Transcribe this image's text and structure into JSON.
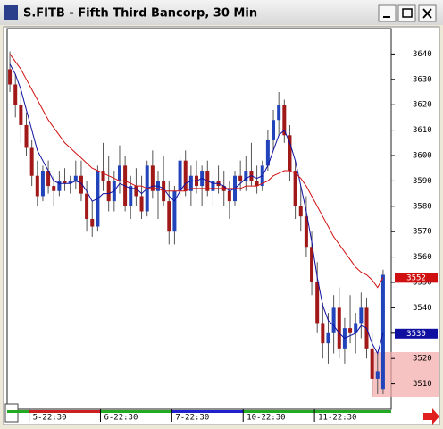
{
  "chart_data": {
    "type": "candlestick",
    "title": "S.FITB - Fifth Third Bancorp, 30 Min",
    "categories": [
      null,
      null,
      null,
      null,
      "5-22:30",
      null,
      null,
      null,
      null,
      null,
      null,
      null,
      null,
      null,
      null,
      null,
      null,
      "6-22:30",
      null,
      null,
      null,
      null,
      null,
      null,
      null,
      null,
      null,
      null,
      null,
      null,
      "7-22:30",
      null,
      null,
      null,
      null,
      null,
      null,
      null,
      null,
      null,
      null,
      null,
      null,
      "10-22:30",
      null,
      null,
      null,
      null,
      null,
      null,
      null,
      null,
      null,
      null,
      null,
      null,
      "11-22:30",
      null,
      null,
      null,
      null,
      null,
      null,
      null,
      null,
      null,
      null,
      null,
      null
    ],
    "open": [
      3634,
      3628,
      3620,
      3612,
      3603,
      3592,
      3584,
      3594,
      3588,
      3586,
      3590,
      3589,
      3590,
      3592,
      3585,
      3575,
      3572,
      3594,
      3590,
      3582,
      3590,
      3596,
      3580,
      3588,
      3584,
      3578,
      3596,
      3586,
      3590,
      3582,
      3570,
      3586,
      3598,
      3586,
      3592,
      3588,
      3594,
      3586,
      3590,
      3588,
      3586,
      3582,
      3592,
      3590,
      3594,
      3590,
      3588,
      3596,
      3606,
      3614,
      3620,
      3608,
      3594,
      3580,
      3576,
      3564,
      3550,
      3534,
      3526,
      3530,
      3540,
      3524,
      3532,
      3530,
      3534,
      3540,
      3524,
      3512,
      3508
    ],
    "high": [
      3641,
      3632,
      3626,
      3617,
      3606,
      3598,
      3596,
      3598,
      3592,
      3594,
      3595,
      3592,
      3598,
      3598,
      3590,
      3582,
      3596,
      3605,
      3600,
      3594,
      3604,
      3600,
      3592,
      3595,
      3592,
      3598,
      3602,
      3594,
      3600,
      3590,
      3588,
      3600,
      3602,
      3596,
      3598,
      3596,
      3598,
      3592,
      3596,
      3594,
      3590,
      3594,
      3598,
      3600,
      3605,
      3596,
      3598,
      3610,
      3618,
      3625,
      3622,
      3612,
      3598,
      3588,
      3584,
      3570,
      3558,
      3542,
      3538,
      3545,
      3548,
      3536,
      3545,
      3538,
      3546,
      3544,
      3530,
      3522,
      3555
    ],
    "low": [
      3625,
      3615,
      3605,
      3600,
      3588,
      3580,
      3582,
      3585,
      3580,
      3584,
      3586,
      3585,
      3587,
      3582,
      3570,
      3568,
      3570,
      3586,
      3578,
      3578,
      3585,
      3578,
      3575,
      3580,
      3575,
      3576,
      3583,
      3575,
      3580,
      3565,
      3565,
      3583,
      3584,
      3580,
      3585,
      3580,
      3584,
      3580,
      3585,
      3580,
      3575,
      3580,
      3586,
      3586,
      3588,
      3585,
      3586,
      3594,
      3602,
      3608,
      3605,
      3590,
      3575,
      3570,
      3560,
      3545,
      3530,
      3520,
      3518,
      3522,
      3520,
      3518,
      3526,
      3522,
      3528,
      3520,
      3505,
      3506,
      3506
    ],
    "close": [
      3628,
      3620,
      3612,
      3603,
      3592,
      3584,
      3594,
      3588,
      3586,
      3590,
      3589,
      3590,
      3592,
      3585,
      3575,
      3572,
      3594,
      3590,
      3582,
      3590,
      3596,
      3580,
      3588,
      3584,
      3578,
      3596,
      3586,
      3590,
      3582,
      3570,
      3586,
      3598,
      3586,
      3592,
      3588,
      3594,
      3586,
      3590,
      3588,
      3586,
      3582,
      3592,
      3590,
      3594,
      3590,
      3588,
      3596,
      3606,
      3614,
      3620,
      3608,
      3594,
      3580,
      3576,
      3564,
      3550,
      3534,
      3526,
      3530,
      3540,
      3524,
      3532,
      3530,
      3534,
      3540,
      3524,
      3512,
      3515,
      3553
    ],
    "up_color": "#2244bb",
    "down_color": "#a01818",
    "series": [
      {
        "color": "#1010a0",
        "values": [
          3636,
          3632,
          3626,
          3618,
          3610,
          3602,
          3598,
          3594,
          3590,
          3589,
          3589,
          3589,
          3590,
          3589,
          3586,
          3582,
          3583,
          3585,
          3585,
          3586,
          3589,
          3588,
          3587,
          3587,
          3585,
          3587,
          3588,
          3588,
          3587,
          3584,
          3582,
          3586,
          3589,
          3590,
          3590,
          3591,
          3590,
          3589,
          3589,
          3588,
          3586,
          3587,
          3589,
          3591,
          3592,
          3591,
          3592,
          3596,
          3602,
          3608,
          3610,
          3605,
          3598,
          3588,
          3578,
          3566,
          3552,
          3541,
          3535,
          3533,
          3530,
          3528,
          3529,
          3530,
          3533,
          3532,
          3526,
          3522,
          3530
        ]
      },
      {
        "color": "#d01010",
        "values": [
          3640,
          3637,
          3634,
          3630,
          3626,
          3622,
          3618,
          3614,
          3611,
          3608,
          3605,
          3603,
          3601,
          3599,
          3597,
          3595,
          3594,
          3593,
          3592,
          3591,
          3590,
          3590,
          3589,
          3588,
          3588,
          3587,
          3587,
          3587,
          3586,
          3586,
          3586,
          3586,
          3586,
          3587,
          3587,
          3587,
          3587,
          3587,
          3587,
          3587,
          3587,
          3587,
          3587,
          3588,
          3588,
          3588,
          3589,
          3590,
          3592,
          3593,
          3594,
          3594,
          3593,
          3591,
          3588,
          3584,
          3580,
          3576,
          3572,
          3568,
          3565,
          3562,
          3559,
          3556,
          3554,
          3553,
          3551,
          3548,
          3552
        ]
      }
    ],
    "ylim": [
      3500,
      3650
    ],
    "yticks": [
      3510,
      3520,
      3530,
      3540,
      3550,
      3560,
      3570,
      3580,
      3590,
      3600,
      3610,
      3620,
      3630,
      3640
    ]
  }
}
